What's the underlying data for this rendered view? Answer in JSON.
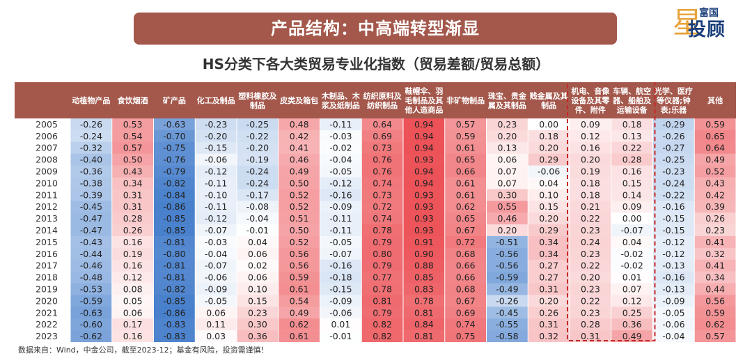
{
  "banner": {
    "title": "产品结构：中高端转型渐显"
  },
  "logo": {
    "top": "富国",
    "main": "投顾",
    "star": "星"
  },
  "chart_data": {
    "type": "table",
    "title": "HS分类下各大类贸易专业化指数（贸易差额/贸易总额）",
    "columns": [
      [
        "动植物产品"
      ],
      [
        "食饮烟酒"
      ],
      [
        "矿产品"
      ],
      [
        "化工及制品"
      ],
      [
        "塑料橡胶及",
        "制品"
      ],
      [
        "皮类及箱包"
      ],
      [
        "木制品、木",
        "浆及纸制品"
      ],
      [
        "纺织原料及",
        "纺织制品"
      ],
      [
        "鞋帽伞、羽",
        "毛制品及其",
        "他人造商品"
      ],
      [
        "非矿物制品"
      ],
      [
        "珠宝、贵金",
        "属及其制品"
      ],
      [
        "贱金属及其",
        "制品"
      ],
      [
        "机电、音像",
        "设备及其零",
        "件、附件"
      ],
      [
        "车辆、航空",
        "器、船舶及",
        "运输设备"
      ],
      [
        "光学、医疗",
        "等仪器;钟",
        "表;乐器"
      ],
      [
        "其他"
      ]
    ],
    "highlight_columns": [
      12,
      13
    ],
    "highlight_color": "#c62828",
    "header_color": "#a4584c",
    "highlight_header_text_color": "#ffd43b",
    "years": [
      "2005",
      "2006",
      "2007",
      "2008",
      "2009",
      "2010",
      "2011",
      "2012",
      "2013",
      "2014",
      "2015",
      "2016",
      "2017",
      "2018",
      "2019",
      "2020",
      "2021",
      "2022",
      "2023"
    ],
    "rows": [
      [
        -0.26,
        0.53,
        -0.63,
        -0.23,
        -0.25,
        0.48,
        -0.11,
        0.64,
        0.94,
        0.57,
        0.23,
        0.0,
        0.09,
        0.18,
        -0.29,
        0.59
      ],
      [
        -0.24,
        0.54,
        -0.7,
        -0.2,
        -0.22,
        0.42,
        -0.03,
        0.69,
        0.94,
        0.59,
        0.2,
        0.18,
        0.12,
        0.13,
        -0.26,
        0.65
      ],
      [
        -0.32,
        0.57,
        -0.75,
        -0.15,
        -0.2,
        0.41,
        -0.02,
        0.73,
        0.94,
        0.61,
        0.13,
        0.2,
        0.16,
        0.22,
        -0.27,
        0.64
      ],
      [
        -0.4,
        0.5,
        -0.76,
        -0.06,
        -0.19,
        0.46,
        -0.04,
        0.76,
        0.93,
        0.65,
        0.06,
        0.29,
        0.2,
        0.28,
        -0.25,
        0.49
      ],
      [
        -0.36,
        0.43,
        -0.79,
        -0.12,
        -0.24,
        0.49,
        -0.05,
        0.76,
        0.94,
        0.66,
        0.07,
        -0.06,
        0.19,
        0.16,
        -0.23,
        0.52
      ],
      [
        -0.38,
        0.34,
        -0.82,
        -0.11,
        -0.24,
        0.5,
        -0.12,
        0.74,
        0.94,
        0.61,
        0.07,
        0.04,
        0.18,
        0.15,
        -0.24,
        0.43
      ],
      [
        -0.39,
        0.31,
        -0.84,
        -0.1,
        -0.17,
        0.52,
        -0.16,
        0.73,
        0.93,
        0.61,
        0.3,
        0.1,
        0.18,
        0.14,
        -0.22,
        0.42
      ],
      [
        -0.45,
        0.31,
        -0.86,
        -0.11,
        -0.08,
        0.52,
        -0.09,
        0.72,
        0.93,
        0.62,
        0.55,
        0.15,
        0.21,
        0.09,
        -0.16,
        0.39
      ],
      [
        -0.47,
        0.28,
        -0.85,
        -0.12,
        -0.04,
        0.51,
        -0.11,
        0.74,
        0.93,
        0.65,
        0.46,
        0.2,
        0.22,
        0.0,
        -0.15,
        0.26
      ],
      [
        -0.47,
        0.26,
        -0.85,
        -0.07,
        -0.01,
        0.5,
        -0.11,
        0.78,
        0.93,
        0.67,
        0.2,
        0.29,
        0.23,
        -0.07,
        -0.15,
        0.23
      ],
      [
        -0.43,
        0.16,
        -0.81,
        -0.03,
        0.04,
        0.52,
        -0.05,
        0.79,
        0.91,
        0.72,
        -0.51,
        0.34,
        0.24,
        0.04,
        -0.12,
        0.41
      ],
      [
        -0.44,
        0.19,
        -0.8,
        -0.04,
        0.06,
        0.56,
        -0.07,
        0.8,
        0.9,
        0.68,
        -0.56,
        0.34,
        0.23,
        -0.02,
        -0.12,
        0.32
      ],
      [
        -0.46,
        0.16,
        -0.81,
        -0.07,
        0.02,
        0.56,
        -0.16,
        0.79,
        0.88,
        0.66,
        -0.56,
        0.27,
        0.22,
        -0.02,
        -0.13,
        0.41
      ],
      [
        -0.48,
        0.12,
        -0.81,
        -0.06,
        0.06,
        0.59,
        -0.18,
        0.77,
        0.85,
        0.66,
        -0.59,
        0.27,
        0.2,
        0.01,
        -0.16,
        0.34
      ],
      [
        -0.53,
        0.08,
        -0.82,
        -0.09,
        0.1,
        0.61,
        -0.15,
        0.78,
        0.83,
        0.68,
        -0.49,
        0.31,
        0.23,
        0.07,
        -0.13,
        0.44
      ],
      [
        -0.59,
        0.05,
        -0.85,
        -0.05,
        0.15,
        0.54,
        -0.09,
        0.81,
        0.78,
        0.67,
        -0.26,
        0.2,
        0.22,
        0.12,
        -0.09,
        0.56
      ],
      [
        -0.63,
        0.06,
        -0.86,
        0.06,
        0.23,
        0.49,
        -0.06,
        0.79,
        0.81,
        0.69,
        -0.45,
        0.26,
        0.23,
        0.25,
        -0.05,
        0.59
      ],
      [
        -0.6,
        0.17,
        -0.83,
        0.11,
        0.3,
        0.62,
        0.01,
        0.82,
        0.84,
        0.74,
        -0.55,
        0.31,
        0.28,
        0.36,
        -0.06,
        0.62
      ],
      [
        -0.62,
        0.16,
        -0.83,
        0.03,
        0.36,
        0.61,
        -0.01,
        0.82,
        0.81,
        0.75,
        -0.58,
        0.32,
        0.31,
        0.49,
        -0.04,
        0.57
      ]
    ]
  },
  "footnote": "数据来自：Wind，中金公司，截至2023-12；基金有风险，投资需谨慎！"
}
